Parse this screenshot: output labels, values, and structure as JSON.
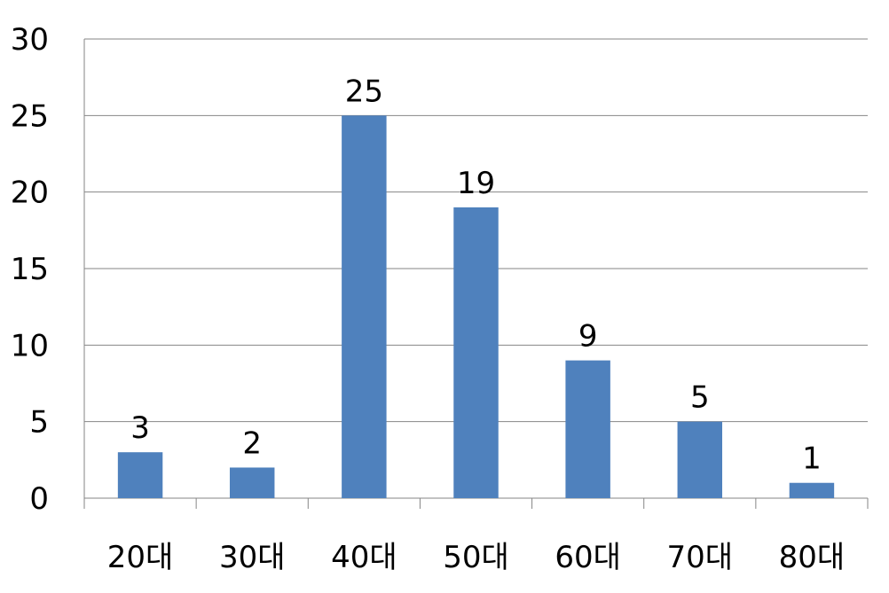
{
  "chart_data": {
    "type": "bar",
    "title": "",
    "xlabel": "",
    "ylabel": "",
    "categories": [
      "20대",
      "30대",
      "40대",
      "50대",
      "60대",
      "70대",
      "80대"
    ],
    "values": [
      3,
      2,
      25,
      19,
      9,
      5,
      1
    ],
    "data_labels": [
      "3",
      "2",
      "25",
      "19",
      "9",
      "5",
      "1"
    ],
    "ylim": [
      0,
      30
    ],
    "yticks": [
      0,
      5,
      10,
      15,
      20,
      25,
      30
    ],
    "ytick_labels": [
      "0",
      "5",
      "10",
      "15",
      "20",
      "25",
      "30"
    ],
    "grid": true,
    "legend": "none",
    "bar_color": "#4F81BD",
    "grid_color": "#868686"
  }
}
